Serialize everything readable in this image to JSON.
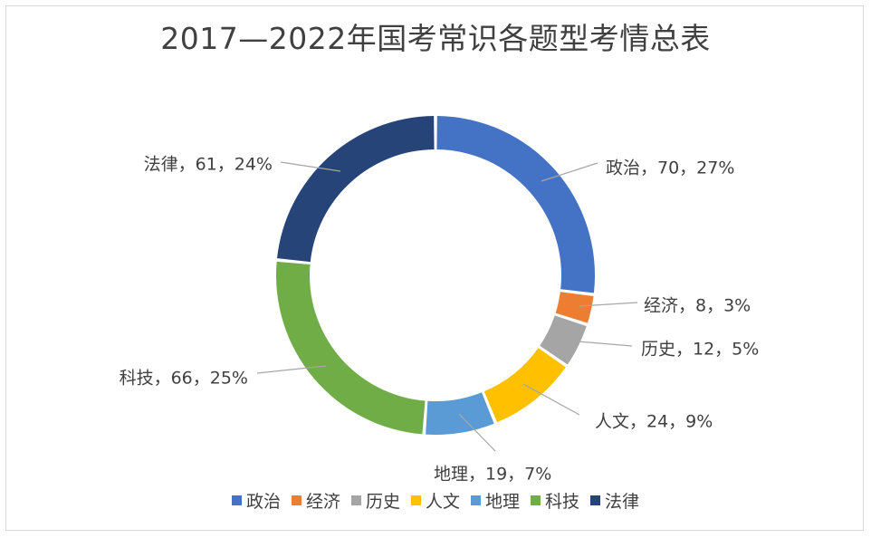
{
  "chart_data": {
    "type": "pie",
    "variant": "donut",
    "title": "2017—2022年国考常识各题型考情总表",
    "series": [
      {
        "name": "政治",
        "value": 70,
        "percent": "27%",
        "label": "政治，70，27%",
        "color": "#4472C4"
      },
      {
        "name": "经济",
        "value": 8,
        "percent": "3%",
        "label": "经济，8，3%",
        "color": "#ED7D31"
      },
      {
        "name": "历史",
        "value": 12,
        "percent": "5%",
        "label": "历史，12，5%",
        "color": "#A5A5A5"
      },
      {
        "name": "人文",
        "value": 24,
        "percent": "9%",
        "label": "人文，24，9%",
        "color": "#FFC000"
      },
      {
        "name": "地理",
        "value": 19,
        "percent": "7%",
        "label": "地理，19，7%",
        "color": "#5B9BD5"
      },
      {
        "name": "科技",
        "value": 66,
        "percent": "25%",
        "label": "科技，66，25%",
        "color": "#70AD47"
      },
      {
        "name": "法律",
        "value": 61,
        "percent": "24%",
        "label": "法律，61，24%",
        "color": "#264478"
      }
    ],
    "legend_position": "bottom"
  }
}
